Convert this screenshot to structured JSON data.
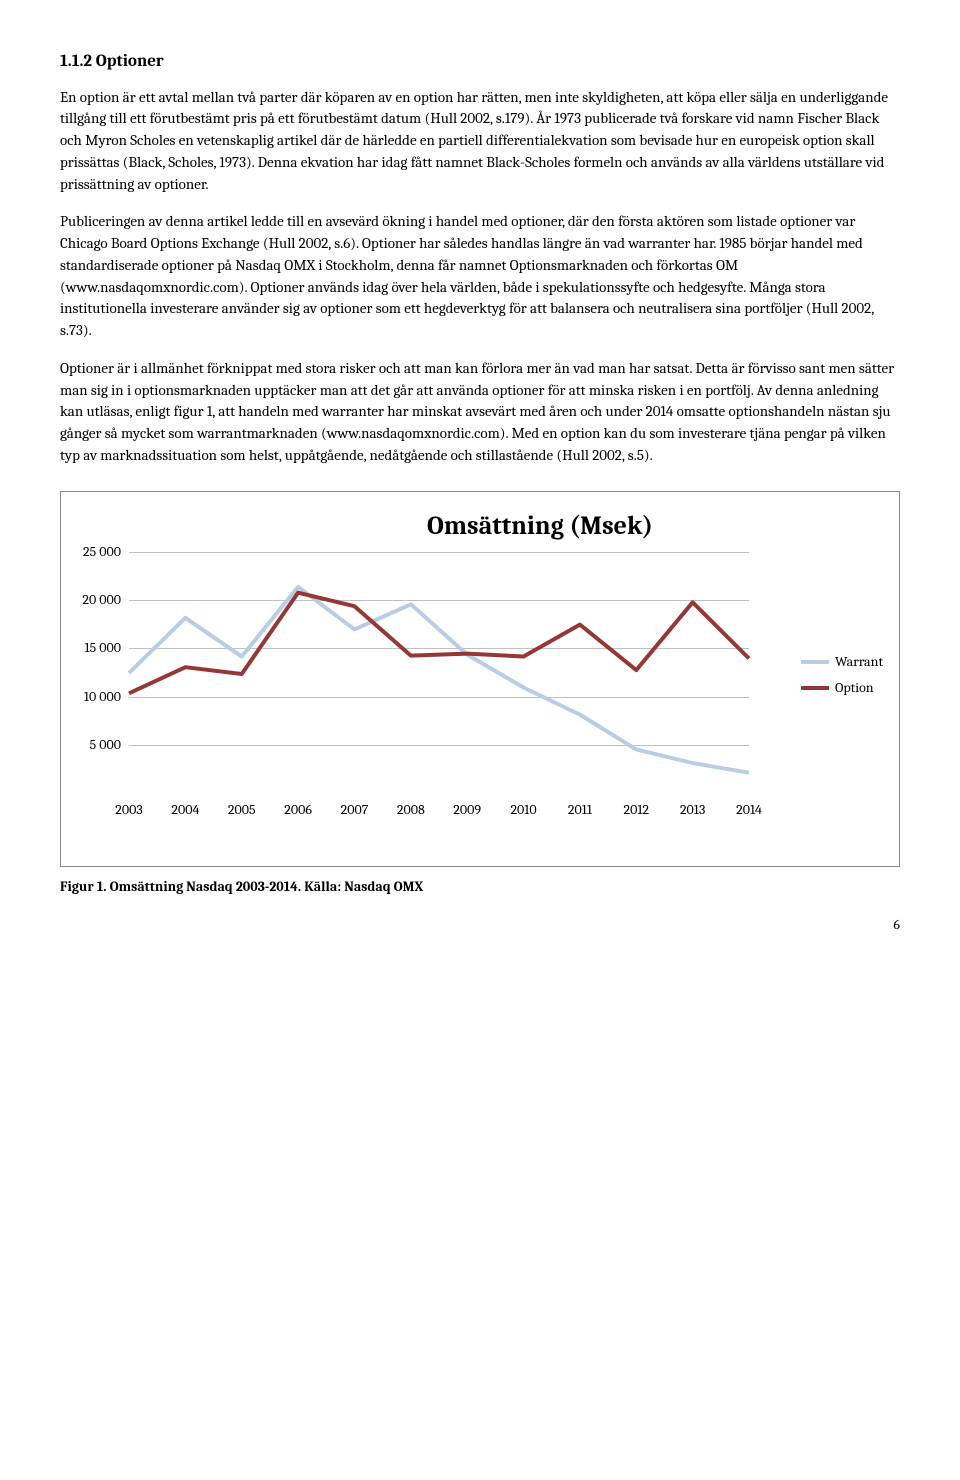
{
  "heading": "1.1.2 Optioner",
  "p1": "En option är ett avtal mellan två parter där köparen av en option har rätten, men inte skyldigheten, att köpa eller sälja en underliggande tillgång till ett förutbestämt pris på ett förutbestämt datum (Hull 2002, s.179). År 1973 publicerade två forskare vid namn Fischer Black och Myron Scholes en vetenskaplig artikel där de härledde en partiell differentialekvation som bevisade hur en europeisk option skall prissättas (Black, Scholes, 1973). Denna ekvation har idag fått namnet Black-Scholes formeln och används av alla världens utställare vid prissättning av optioner.",
  "p2": "Publiceringen av denna artikel ledde till en avsevärd ökning i handel med optioner, där den första aktören som listade optioner var Chicago Board Options Exchange (Hull 2002, s.6). Optioner har således handlas längre än vad warranter har. 1985 börjar handel med standardiserade optioner på Nasdaq OMX i Stockholm, denna får namnet Optionsmarknaden och förkortas OM (www.nasdaqomxnordic.com). Optioner används idag över hela världen, både i spekulationssyfte och hedgesyfte. Många stora institutionella investerare använder sig av optioner som ett hegdeverktyg för att balansera och neutralisera sina portföljer (Hull 2002, s.73).",
  "p3": "Optioner är i allmänhet förknippat med stora risker och att man kan förlora mer än vad man har satsat. Detta är förvisso sant men sätter man sig in i optionsmarknaden upptäcker man att det går att använda optioner för att minska risken i en portfölj. Av denna anledning kan utläsas, enligt figur 1, att handeln med warranter har minskat avsevärt med åren och under 2014 omsatte optionshandeln nästan sju gånger så mycket som warrantmarknaden (www.nasdaqomxnordic.com). Med en option kan du som investerare tjäna pengar på vilken typ av marknadssituation som helst, uppåtgående, nedåtgående och stillastående (Hull 2002, s.5).",
  "chart": {
    "title": "Omsättning (Msek)",
    "categories": [
      "2003",
      "2004",
      "2005",
      "2006",
      "2007",
      "2008",
      "2009",
      "2010",
      "2011",
      "2012",
      "2013",
      "2014"
    ],
    "series": [
      {
        "name": "Warrant",
        "color": "#b8cde4",
        "values": [
          12500,
          18200,
          14200,
          21400,
          17000,
          19600,
          14400,
          11000,
          8200,
          4600,
          3200,
          2200
        ]
      },
      {
        "name": "Option",
        "color": "#953735",
        "values": [
          10400,
          13100,
          12400,
          20800,
          19400,
          14300,
          14500,
          14200,
          17500,
          12800,
          19800,
          14000
        ]
      }
    ],
    "ylim": [
      0,
      25000
    ],
    "yticks": [
      5000,
      10000,
      15000,
      20000,
      25000
    ],
    "yticklabels": [
      "5 000",
      "10 000",
      "15 000",
      "20 000",
      "25 000"
    ],
    "grid_color": "#bfbfbf",
    "line_width": 4,
    "title_fontsize": 26
  },
  "caption": "Figur 1. Omsättning Nasdaq 2003-2014. Källa: Nasdaq OMX",
  "pagenum": "6"
}
